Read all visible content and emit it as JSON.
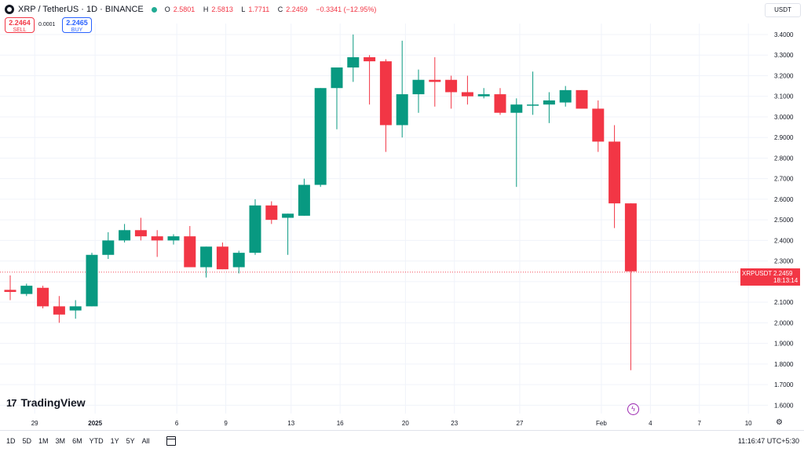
{
  "header": {
    "title": "XRP / TetherUS · 1D · BINANCE",
    "open_label": "O",
    "open": "2.5801",
    "high_label": "H",
    "high": "2.5813",
    "low_label": "L",
    "low": "1.7711",
    "close_label": "C",
    "close": "2.2459",
    "change": "−0.3341 (−12.95%)",
    "status_color": "#22ab94"
  },
  "trade": {
    "sell_price": "2.2464",
    "sell_label": "SELL",
    "spread": "0.0001",
    "buy_price": "2.2465",
    "buy_label": "BUY"
  },
  "currency_button": "USDT",
  "brand": "TradingView",
  "price_tag": {
    "symbol": "XRPUSDT",
    "price": "2.2459",
    "countdown": "18:13:14"
  },
  "bottom_bar": {
    "ranges": [
      "1D",
      "5D",
      "1M",
      "3M",
      "6M",
      "YTD",
      "1Y",
      "5Y",
      "All"
    ],
    "time": "11:16:47 UTC+5:30"
  },
  "colors": {
    "up": "#089981",
    "down": "#f23645",
    "grid": "#f0f3fa"
  },
  "icons": [
    "tradingview-logo-icon",
    "calendar-icon",
    "lightning-icon",
    "gear-icon"
  ],
  "chart_data": {
    "type": "candlestick",
    "title": "XRP / TetherUS · 1D · BINANCE",
    "ylim": [
      1.55,
      3.45
    ],
    "y_ticks": [
      1.6,
      1.7,
      1.8,
      1.9,
      2.0,
      2.1,
      2.2,
      2.3,
      2.4,
      2.5,
      2.6,
      2.7,
      2.8,
      2.9,
      3.0,
      3.1,
      3.2,
      3.3,
      3.4
    ],
    "y_tick_labels": [
      "1.6000",
      "1.7000",
      "1.8000",
      "1.9000",
      "2.0000",
      "2.1000",
      "2.2000",
      "2.3000",
      "2.4000",
      "2.5000",
      "2.6000",
      "2.7000",
      "2.8000",
      "2.9000",
      "3.0000",
      "3.1000",
      "3.2000",
      "3.3000",
      "3.4000"
    ],
    "x_tick_labels": [
      {
        "label": "29",
        "index": 1.5
      },
      {
        "label": "2025",
        "index": 5.2
      },
      {
        "label": "6",
        "index": 10.2
      },
      {
        "label": "9",
        "index": 13.2
      },
      {
        "label": "13",
        "index": 17.2
      },
      {
        "label": "16",
        "index": 20.2
      },
      {
        "label": "20",
        "index": 24.2
      },
      {
        "label": "23",
        "index": 27.2
      },
      {
        "label": "27",
        "index": 31.2
      },
      {
        "label": "Feb",
        "index": 36.2
      },
      {
        "label": "4",
        "index": 39.2
      },
      {
        "label": "7",
        "index": 42.2
      },
      {
        "label": "10",
        "index": 45.2
      }
    ],
    "last_price": 2.2459,
    "candles": [
      {
        "o": 2.16,
        "h": 2.23,
        "l": 2.11,
        "c": 2.15
      },
      {
        "o": 2.14,
        "h": 2.19,
        "l": 2.13,
        "c": 2.18
      },
      {
        "o": 2.17,
        "h": 2.18,
        "l": 2.07,
        "c": 2.08
      },
      {
        "o": 2.08,
        "h": 2.13,
        "l": 2.0,
        "c": 2.04
      },
      {
        "o": 2.06,
        "h": 2.11,
        "l": 2.02,
        "c": 2.08
      },
      {
        "o": 2.08,
        "h": 2.34,
        "l": 2.08,
        "c": 2.33
      },
      {
        "o": 2.33,
        "h": 2.44,
        "l": 2.31,
        "c": 2.4
      },
      {
        "o": 2.4,
        "h": 2.48,
        "l": 2.39,
        "c": 2.45
      },
      {
        "o": 2.45,
        "h": 2.51,
        "l": 2.4,
        "c": 2.42
      },
      {
        "o": 2.42,
        "h": 2.45,
        "l": 2.32,
        "c": 2.4
      },
      {
        "o": 2.4,
        "h": 2.43,
        "l": 2.38,
        "c": 2.42
      },
      {
        "o": 2.42,
        "h": 2.47,
        "l": 2.27,
        "c": 2.27
      },
      {
        "o": 2.27,
        "h": 2.37,
        "l": 2.22,
        "c": 2.37
      },
      {
        "o": 2.37,
        "h": 2.39,
        "l": 2.26,
        "c": 2.26
      },
      {
        "o": 2.27,
        "h": 2.35,
        "l": 2.24,
        "c": 2.34
      },
      {
        "o": 2.34,
        "h": 2.6,
        "l": 2.33,
        "c": 2.57
      },
      {
        "o": 2.57,
        "h": 2.59,
        "l": 2.48,
        "c": 2.5
      },
      {
        "o": 2.51,
        "h": 2.53,
        "l": 2.33,
        "c": 2.53
      },
      {
        "o": 2.52,
        "h": 2.7,
        "l": 2.52,
        "c": 2.67
      },
      {
        "o": 2.67,
        "h": 3.14,
        "l": 2.66,
        "c": 3.14
      },
      {
        "o": 3.14,
        "h": 3.24,
        "l": 2.94,
        "c": 3.24
      },
      {
        "o": 3.24,
        "h": 3.4,
        "l": 3.17,
        "c": 3.29
      },
      {
        "o": 3.29,
        "h": 3.3,
        "l": 3.06,
        "c": 3.27
      },
      {
        "o": 3.27,
        "h": 3.28,
        "l": 2.83,
        "c": 2.96
      },
      {
        "o": 2.96,
        "h": 3.37,
        "l": 2.9,
        "c": 3.11
      },
      {
        "o": 3.11,
        "h": 3.23,
        "l": 3.02,
        "c": 3.18
      },
      {
        "o": 3.18,
        "h": 3.29,
        "l": 3.05,
        "c": 3.17
      },
      {
        "o": 3.18,
        "h": 3.2,
        "l": 3.04,
        "c": 3.12
      },
      {
        "o": 3.12,
        "h": 3.2,
        "l": 3.06,
        "c": 3.1
      },
      {
        "o": 3.1,
        "h": 3.14,
        "l": 3.09,
        "c": 3.11
      },
      {
        "o": 3.11,
        "h": 3.14,
        "l": 3.01,
        "c": 3.02
      },
      {
        "o": 3.02,
        "h": 3.09,
        "l": 2.66,
        "c": 3.06
      },
      {
        "o": 3.06,
        "h": 3.22,
        "l": 3.01,
        "c": 3.06
      },
      {
        "o": 3.06,
        "h": 3.12,
        "l": 2.97,
        "c": 3.08
      },
      {
        "o": 3.07,
        "h": 3.15,
        "l": 3.05,
        "c": 3.13
      },
      {
        "o": 3.13,
        "h": 3.13,
        "l": 3.04,
        "c": 3.04
      },
      {
        "o": 3.04,
        "h": 3.08,
        "l": 2.83,
        "c": 2.88
      },
      {
        "o": 2.88,
        "h": 2.96,
        "l": 2.46,
        "c": 2.58
      },
      {
        "o": 2.58,
        "h": 2.58,
        "l": 1.77,
        "c": 2.25
      }
    ]
  }
}
